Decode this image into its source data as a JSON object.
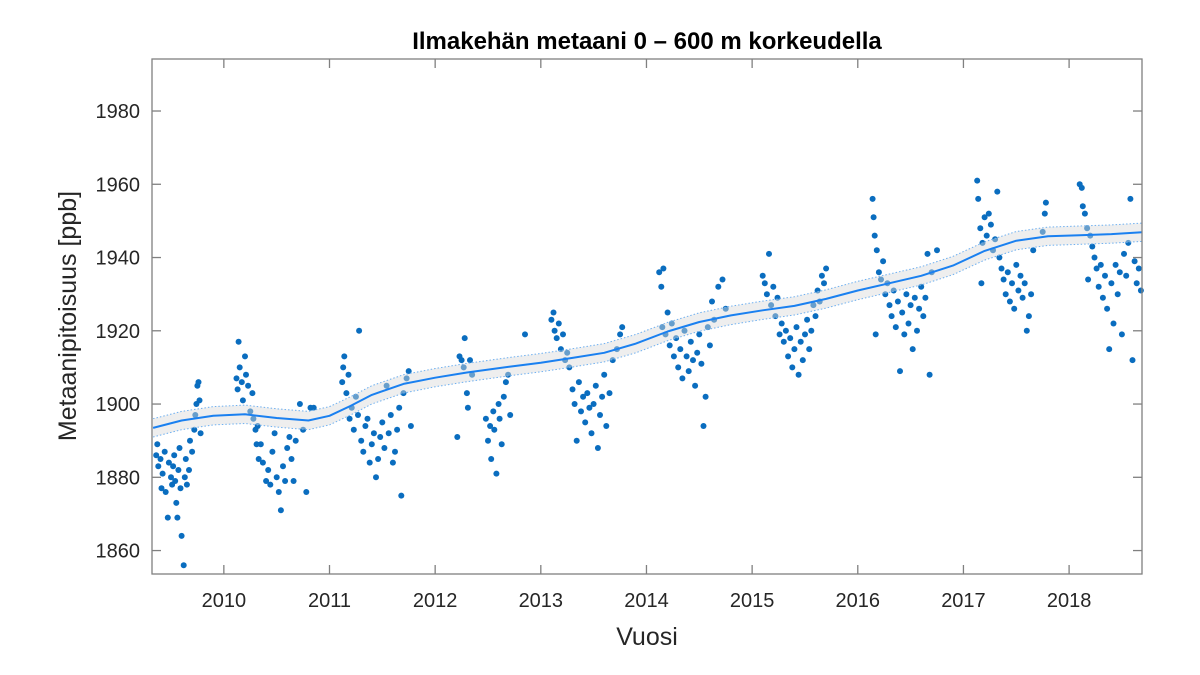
{
  "chart_data": {
    "type": "scatter",
    "title": "Ilmakehän metaani 0 – 600 m korkeudella",
    "xlabel": "Vuosi",
    "ylabel": "Metaanipitoisuus [ppb]",
    "xlim": [
      2009.32,
      2018.69
    ],
    "ylim": [
      1853.6,
      1994.2
    ],
    "xticks": [
      2010,
      2011,
      2012,
      2013,
      2014,
      2015,
      2016,
      2017,
      2018
    ],
    "yticks": [
      1860,
      1880,
      1900,
      1920,
      1940,
      1960,
      1980
    ],
    "grid": false,
    "colors": {
      "points": "#0A6DBF",
      "trend": "#1A80F0",
      "band_fill": "#D9D9D9",
      "band_edge": "#6FB0F0",
      "axes": "#808080"
    },
    "trend": [
      [
        2009.33,
        1893.5
      ],
      [
        2009.6,
        1895.5
      ],
      [
        2009.9,
        1896.8
      ],
      [
        2010.2,
        1897.2
      ],
      [
        2010.5,
        1896.2
      ],
      [
        2010.8,
        1895.5
      ],
      [
        2011.0,
        1896.8
      ],
      [
        2011.2,
        1899.5
      ],
      [
        2011.4,
        1902.5
      ],
      [
        2011.7,
        1905.5
      ],
      [
        2012.0,
        1907.2
      ],
      [
        2012.3,
        1908.6
      ],
      [
        2012.7,
        1910.2
      ],
      [
        2013.0,
        1911.3
      ],
      [
        2013.3,
        1912.6
      ],
      [
        2013.6,
        1914.0
      ],
      [
        2013.9,
        1916.5
      ],
      [
        2014.2,
        1919.8
      ],
      [
        2014.5,
        1922.4
      ],
      [
        2014.8,
        1924.2
      ],
      [
        2015.1,
        1925.6
      ],
      [
        2015.4,
        1926.8
      ],
      [
        2015.7,
        1928.7
      ],
      [
        2016.0,
        1931.0
      ],
      [
        2016.3,
        1933.0
      ],
      [
        2016.6,
        1935.0
      ],
      [
        2016.9,
        1937.8
      ],
      [
        2017.2,
        1941.8
      ],
      [
        2017.5,
        1944.6
      ],
      [
        2017.8,
        1945.8
      ],
      [
        2018.1,
        1946.1
      ],
      [
        2018.4,
        1946.4
      ],
      [
        2018.69,
        1946.9
      ]
    ],
    "band_halfwidth": 2.5,
    "points": [
      [
        2009.36,
        1886
      ],
      [
        2009.37,
        1889
      ],
      [
        2009.38,
        1883
      ],
      [
        2009.4,
        1885
      ],
      [
        2009.41,
        1877
      ],
      [
        2009.42,
        1881
      ],
      [
        2009.44,
        1887
      ],
      [
        2009.45,
        1876
      ],
      [
        2009.47,
        1869
      ],
      [
        2009.48,
        1884
      ],
      [
        2009.5,
        1880
      ],
      [
        2009.51,
        1878
      ],
      [
        2009.52,
        1883
      ],
      [
        2009.53,
        1886
      ],
      [
        2009.54,
        1879
      ],
      [
        2009.55,
        1873
      ],
      [
        2009.56,
        1869
      ],
      [
        2009.57,
        1882
      ],
      [
        2009.58,
        1888
      ],
      [
        2009.59,
        1877
      ],
      [
        2009.6,
        1864
      ],
      [
        2009.62,
        1856
      ],
      [
        2009.63,
        1880
      ],
      [
        2009.64,
        1885
      ],
      [
        2009.65,
        1878
      ],
      [
        2009.67,
        1882
      ],
      [
        2009.68,
        1890
      ],
      [
        2009.7,
        1887
      ],
      [
        2009.72,
        1893
      ],
      [
        2009.73,
        1897
      ],
      [
        2009.74,
        1900
      ],
      [
        2009.75,
        1905
      ],
      [
        2009.76,
        1906
      ],
      [
        2009.77,
        1901
      ],
      [
        2009.78,
        1892
      ],
      [
        2010.12,
        1907
      ],
      [
        2010.13,
        1904
      ],
      [
        2010.14,
        1917
      ],
      [
        2010.15,
        1910
      ],
      [
        2010.17,
        1906
      ],
      [
        2010.18,
        1901
      ],
      [
        2010.2,
        1913
      ],
      [
        2010.21,
        1908
      ],
      [
        2010.23,
        1905
      ],
      [
        2010.25,
        1898
      ],
      [
        2010.27,
        1903
      ],
      [
        2010.28,
        1896
      ],
      [
        2010.3,
        1893
      ],
      [
        2010.31,
        1889
      ],
      [
        2010.32,
        1894
      ],
      [
        2010.33,
        1885
      ],
      [
        2010.35,
        1889
      ],
      [
        2010.37,
        1884
      ],
      [
        2010.4,
        1879
      ],
      [
        2010.42,
        1882
      ],
      [
        2010.44,
        1878
      ],
      [
        2010.46,
        1887
      ],
      [
        2010.48,
        1892
      ],
      [
        2010.5,
        1880
      ],
      [
        2010.52,
        1876
      ],
      [
        2010.54,
        1871
      ],
      [
        2010.56,
        1883
      ],
      [
        2010.58,
        1879
      ],
      [
        2010.6,
        1888
      ],
      [
        2010.62,
        1891
      ],
      [
        2010.64,
        1885
      ],
      [
        2010.66,
        1879
      ],
      [
        2010.68,
        1890
      ],
      [
        2010.72,
        1900
      ],
      [
        2010.75,
        1893
      ],
      [
        2010.78,
        1876
      ],
      [
        2010.82,
        1899
      ],
      [
        2010.85,
        1899
      ],
      [
        2011.12,
        1906
      ],
      [
        2011.13,
        1910
      ],
      [
        2011.14,
        1913
      ],
      [
        2011.16,
        1903
      ],
      [
        2011.18,
        1908
      ],
      [
        2011.19,
        1896
      ],
      [
        2011.21,
        1899
      ],
      [
        2011.23,
        1893
      ],
      [
        2011.25,
        1902
      ],
      [
        2011.27,
        1897
      ],
      [
        2011.28,
        1920
      ],
      [
        2011.3,
        1890
      ],
      [
        2011.32,
        1887
      ],
      [
        2011.34,
        1894
      ],
      [
        2011.36,
        1896
      ],
      [
        2011.38,
        1884
      ],
      [
        2011.4,
        1889
      ],
      [
        2011.42,
        1892
      ],
      [
        2011.44,
        1880
      ],
      [
        2011.46,
        1885
      ],
      [
        2011.48,
        1891
      ],
      [
        2011.5,
        1895
      ],
      [
        2011.52,
        1888
      ],
      [
        2011.54,
        1905
      ],
      [
        2011.56,
        1892
      ],
      [
        2011.58,
        1897
      ],
      [
        2011.6,
        1884
      ],
      [
        2011.62,
        1887
      ],
      [
        2011.64,
        1893
      ],
      [
        2011.66,
        1899
      ],
      [
        2011.68,
        1875
      ],
      [
        2011.7,
        1903
      ],
      [
        2011.73,
        1907
      ],
      [
        2011.75,
        1909
      ],
      [
        2011.77,
        1894
      ],
      [
        2012.21,
        1891
      ],
      [
        2012.23,
        1913
      ],
      [
        2012.25,
        1912
      ],
      [
        2012.27,
        1910
      ],
      [
        2012.28,
        1918
      ],
      [
        2012.3,
        1903
      ],
      [
        2012.31,
        1899
      ],
      [
        2012.33,
        1912
      ],
      [
        2012.35,
        1908
      ],
      [
        2012.48,
        1896
      ],
      [
        2012.5,
        1890
      ],
      [
        2012.52,
        1894
      ],
      [
        2012.53,
        1885
      ],
      [
        2012.55,
        1898
      ],
      [
        2012.56,
        1893
      ],
      [
        2012.58,
        1881
      ],
      [
        2012.6,
        1900
      ],
      [
        2012.61,
        1896
      ],
      [
        2012.63,
        1889
      ],
      [
        2012.65,
        1902
      ],
      [
        2012.67,
        1906
      ],
      [
        2012.69,
        1908
      ],
      [
        2012.71,
        1897
      ],
      [
        2012.85,
        1919
      ],
      [
        2013.1,
        1923
      ],
      [
        2013.12,
        1925
      ],
      [
        2013.13,
        1920
      ],
      [
        2013.15,
        1918
      ],
      [
        2013.17,
        1922
      ],
      [
        2013.19,
        1915
      ],
      [
        2013.21,
        1919
      ],
      [
        2013.23,
        1912
      ],
      [
        2013.25,
        1914
      ],
      [
        2013.27,
        1910
      ],
      [
        2013.3,
        1904
      ],
      [
        2013.32,
        1900
      ],
      [
        2013.34,
        1890
      ],
      [
        2013.36,
        1906
      ],
      [
        2013.38,
        1898
      ],
      [
        2013.4,
        1902
      ],
      [
        2013.42,
        1895
      ],
      [
        2013.44,
        1903
      ],
      [
        2013.46,
        1899
      ],
      [
        2013.48,
        1892
      ],
      [
        2013.5,
        1900
      ],
      [
        2013.52,
        1905
      ],
      [
        2013.54,
        1888
      ],
      [
        2013.56,
        1897
      ],
      [
        2013.58,
        1902
      ],
      [
        2013.6,
        1908
      ],
      [
        2013.62,
        1894
      ],
      [
        2013.65,
        1903
      ],
      [
        2013.68,
        1912
      ],
      [
        2013.72,
        1915
      ],
      [
        2013.75,
        1919
      ],
      [
        2013.77,
        1921
      ],
      [
        2014.12,
        1936
      ],
      [
        2014.14,
        1932
      ],
      [
        2014.16,
        1937
      ],
      [
        2014.15,
        1921
      ],
      [
        2014.18,
        1919
      ],
      [
        2014.2,
        1925
      ],
      [
        2014.22,
        1916
      ],
      [
        2014.24,
        1922
      ],
      [
        2014.26,
        1913
      ],
      [
        2014.28,
        1918
      ],
      [
        2014.3,
        1910
      ],
      [
        2014.32,
        1915
      ],
      [
        2014.34,
        1907
      ],
      [
        2014.36,
        1920
      ],
      [
        2014.38,
        1913
      ],
      [
        2014.4,
        1909
      ],
      [
        2014.42,
        1917
      ],
      [
        2014.44,
        1912
      ],
      [
        2014.46,
        1905
      ],
      [
        2014.48,
        1914
      ],
      [
        2014.5,
        1919
      ],
      [
        2014.52,
        1911
      ],
      [
        2014.54,
        1894
      ],
      [
        2014.56,
        1902
      ],
      [
        2014.58,
        1921
      ],
      [
        2014.6,
        1916
      ],
      [
        2014.62,
        1928
      ],
      [
        2014.64,
        1923
      ],
      [
        2014.68,
        1932
      ],
      [
        2014.72,
        1934
      ],
      [
        2014.75,
        1926
      ],
      [
        2015.1,
        1935
      ],
      [
        2015.12,
        1933
      ],
      [
        2015.14,
        1930
      ],
      [
        2015.16,
        1941
      ],
      [
        2015.18,
        1927
      ],
      [
        2015.2,
        1932
      ],
      [
        2015.22,
        1924
      ],
      [
        2015.24,
        1929
      ],
      [
        2015.26,
        1919
      ],
      [
        2015.28,
        1922
      ],
      [
        2015.3,
        1917
      ],
      [
        2015.32,
        1920
      ],
      [
        2015.34,
        1913
      ],
      [
        2015.36,
        1918
      ],
      [
        2015.38,
        1910
      ],
      [
        2015.4,
        1915
      ],
      [
        2015.42,
        1921
      ],
      [
        2015.44,
        1908
      ],
      [
        2015.46,
        1917
      ],
      [
        2015.48,
        1912
      ],
      [
        2015.5,
        1919
      ],
      [
        2015.52,
        1923
      ],
      [
        2015.54,
        1915
      ],
      [
        2015.56,
        1920
      ],
      [
        2015.58,
        1927
      ],
      [
        2015.6,
        1924
      ],
      [
        2015.62,
        1931
      ],
      [
        2015.64,
        1928
      ],
      [
        2015.66,
        1935
      ],
      [
        2015.68,
        1933
      ],
      [
        2015.7,
        1937
      ],
      [
        2016.14,
        1956
      ],
      [
        2016.15,
        1951
      ],
      [
        2016.16,
        1946
      ],
      [
        2016.18,
        1942
      ],
      [
        2016.17,
        1919
      ],
      [
        2016.2,
        1936
      ],
      [
        2016.22,
        1934
      ],
      [
        2016.24,
        1939
      ],
      [
        2016.26,
        1930
      ],
      [
        2016.28,
        1933
      ],
      [
        2016.3,
        1927
      ],
      [
        2016.32,
        1924
      ],
      [
        2016.34,
        1931
      ],
      [
        2016.36,
        1921
      ],
      [
        2016.38,
        1928
      ],
      [
        2016.4,
        1909
      ],
      [
        2016.42,
        1925
      ],
      [
        2016.44,
        1919
      ],
      [
        2016.46,
        1930
      ],
      [
        2016.48,
        1922
      ],
      [
        2016.5,
        1927
      ],
      [
        2016.52,
        1915
      ],
      [
        2016.54,
        1929
      ],
      [
        2016.56,
        1920
      ],
      [
        2016.58,
        1926
      ],
      [
        2016.6,
        1932
      ],
      [
        2016.62,
        1924
      ],
      [
        2016.64,
        1929
      ],
      [
        2016.66,
        1941
      ],
      [
        2016.68,
        1908
      ],
      [
        2016.7,
        1936
      ],
      [
        2016.75,
        1942
      ],
      [
        2017.13,
        1961
      ],
      [
        2017.14,
        1956
      ],
      [
        2017.16,
        1948
      ],
      [
        2017.17,
        1933
      ],
      [
        2017.18,
        1944
      ],
      [
        2017.2,
        1951
      ],
      [
        2017.22,
        1946
      ],
      [
        2017.24,
        1952
      ],
      [
        2017.26,
        1949
      ],
      [
        2017.28,
        1942
      ],
      [
        2017.3,
        1945
      ],
      [
        2017.32,
        1958
      ],
      [
        2017.34,
        1940
      ],
      [
        2017.36,
        1937
      ],
      [
        2017.38,
        1934
      ],
      [
        2017.4,
        1930
      ],
      [
        2017.42,
        1936
      ],
      [
        2017.44,
        1928
      ],
      [
        2017.46,
        1933
      ],
      [
        2017.48,
        1926
      ],
      [
        2017.5,
        1938
      ],
      [
        2017.52,
        1931
      ],
      [
        2017.54,
        1935
      ],
      [
        2017.56,
        1929
      ],
      [
        2017.58,
        1933
      ],
      [
        2017.6,
        1920
      ],
      [
        2017.62,
        1924
      ],
      [
        2017.64,
        1930
      ],
      [
        2017.66,
        1942
      ],
      [
        2017.75,
        1947
      ],
      [
        2017.77,
        1952
      ],
      [
        2017.78,
        1955
      ],
      [
        2018.1,
        1960
      ],
      [
        2018.12,
        1959
      ],
      [
        2018.13,
        1954
      ],
      [
        2018.15,
        1952
      ],
      [
        2018.17,
        1948
      ],
      [
        2018.18,
        1934
      ],
      [
        2018.2,
        1946
      ],
      [
        2018.22,
        1943
      ],
      [
        2018.24,
        1940
      ],
      [
        2018.26,
        1937
      ],
      [
        2018.28,
        1932
      ],
      [
        2018.3,
        1938
      ],
      [
        2018.32,
        1929
      ],
      [
        2018.34,
        1935
      ],
      [
        2018.36,
        1926
      ],
      [
        2018.38,
        1915
      ],
      [
        2018.4,
        1933
      ],
      [
        2018.42,
        1922
      ],
      [
        2018.44,
        1938
      ],
      [
        2018.46,
        1930
      ],
      [
        2018.48,
        1936
      ],
      [
        2018.5,
        1919
      ],
      [
        2018.52,
        1941
      ],
      [
        2018.54,
        1935
      ],
      [
        2018.56,
        1944
      ],
      [
        2018.58,
        1956
      ],
      [
        2018.6,
        1912
      ],
      [
        2018.62,
        1939
      ],
      [
        2018.64,
        1933
      ],
      [
        2018.66,
        1937
      ],
      [
        2018.68,
        1931
      ]
    ]
  }
}
